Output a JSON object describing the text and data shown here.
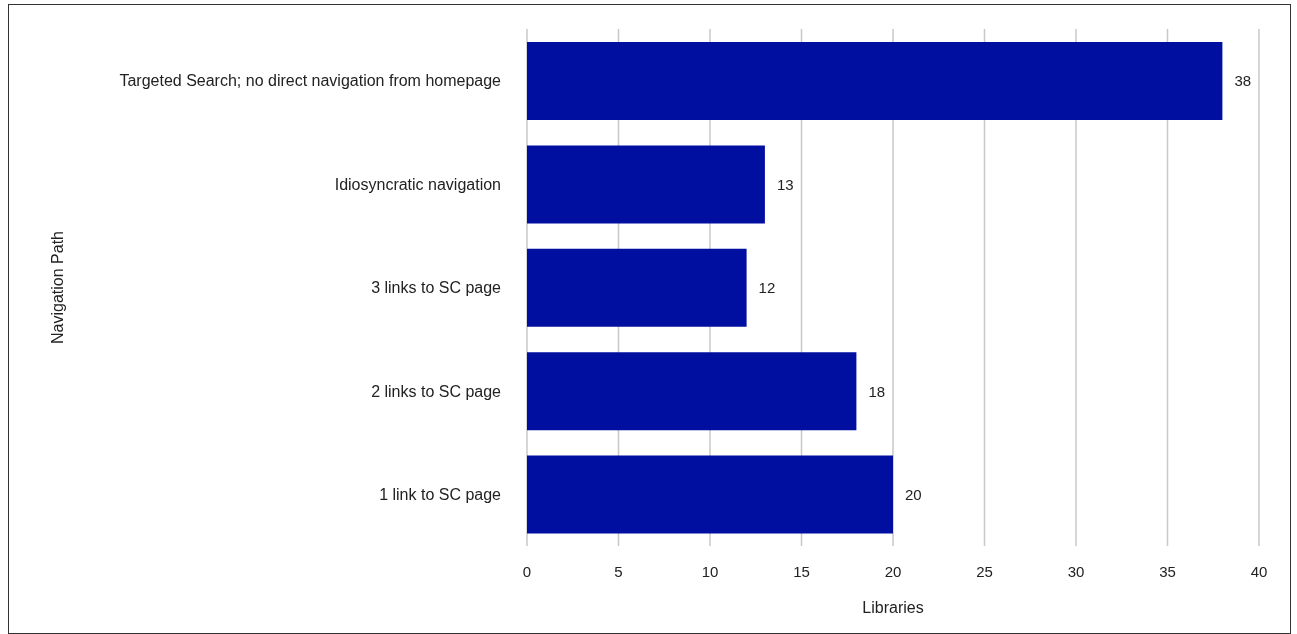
{
  "chart_data": {
    "type": "bar",
    "orientation": "horizontal",
    "xlabel": "Libraries",
    "ylabel": "Navigation Path",
    "categories": [
      "Targeted Search; no direct navigation from homepage",
      "Idiosyncratic navigation",
      "3 links to SC page",
      "2 links to SC page",
      "1 link to SC page"
    ],
    "values": [
      38,
      13,
      12,
      18,
      20
    ],
    "color": "#000f9f",
    "xlim": [
      0,
      40
    ],
    "xticks": [
      0,
      5,
      10,
      15,
      20,
      25,
      30,
      35,
      40
    ],
    "grid": "x",
    "data_labels": true
  }
}
